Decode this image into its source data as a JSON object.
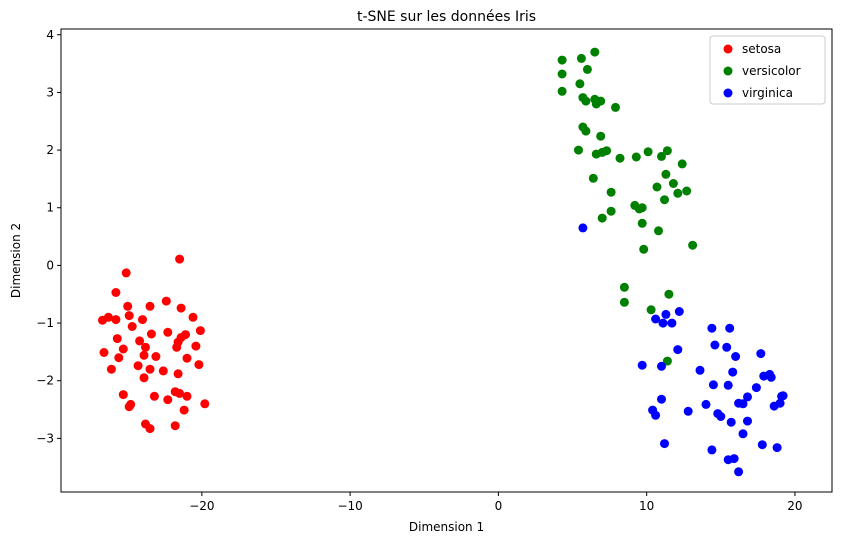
{
  "chart_data": {
    "type": "scatter",
    "title": "t-SNE sur les données Iris",
    "xlabel": "Dimension 1",
    "ylabel": "Dimension 2",
    "xlim": [
      -29.5,
      22.5
    ],
    "ylim": [
      -3.93,
      4.1
    ],
    "xticks": [
      -20,
      -10,
      0,
      10,
      20
    ],
    "xtick_labels": [
      "−20",
      "−10",
      "0",
      "10",
      "20"
    ],
    "yticks": [
      -3,
      -2,
      -1,
      0,
      1,
      2,
      3,
      4
    ],
    "ytick_labels": [
      "−3",
      "−2",
      "−1",
      "0",
      "1",
      "2",
      "3",
      "4"
    ],
    "grid": false,
    "legend_position": "top-right",
    "series": [
      {
        "name": "setosa",
        "color": "#ff0000",
        "points": [
          [
            -21.5,
            0.11
          ],
          [
            -25.1,
            -0.13
          ],
          [
            -25.8,
            -0.47
          ],
          [
            -22.4,
            -0.62
          ],
          [
            -25.0,
            -0.71
          ],
          [
            -23.5,
            -0.71
          ],
          [
            -21.4,
            -0.74
          ],
          [
            -20.6,
            -0.9
          ],
          [
            -26.7,
            -0.95
          ],
          [
            -26.3,
            -0.9
          ],
          [
            -25.8,
            -0.94
          ],
          [
            -24.9,
            -0.87
          ],
          [
            -24.0,
            -0.94
          ],
          [
            -24.7,
            -1.06
          ],
          [
            -20.1,
            -1.13
          ],
          [
            -23.4,
            -1.19
          ],
          [
            -22.3,
            -1.16
          ],
          [
            -21.4,
            -1.25
          ],
          [
            -21.1,
            -1.2
          ],
          [
            -21.6,
            -1.33
          ],
          [
            -25.7,
            -1.27
          ],
          [
            -24.2,
            -1.31
          ],
          [
            -26.6,
            -1.51
          ],
          [
            -25.3,
            -1.45
          ],
          [
            -23.8,
            -1.42
          ],
          [
            -21.7,
            -1.42
          ],
          [
            -20.4,
            -1.4
          ],
          [
            -25.6,
            -1.6
          ],
          [
            -23.9,
            -1.56
          ],
          [
            -23.1,
            -1.58
          ],
          [
            -21.0,
            -1.61
          ],
          [
            -20.2,
            -1.72
          ],
          [
            -26.1,
            -1.8
          ],
          [
            -24.3,
            -1.74
          ],
          [
            -23.5,
            -1.8
          ],
          [
            -22.6,
            -1.83
          ],
          [
            -21.6,
            -1.88
          ],
          [
            -23.9,
            -1.95
          ],
          [
            -21.8,
            -2.19
          ],
          [
            -21.0,
            -2.27
          ],
          [
            -25.3,
            -2.24
          ],
          [
            -23.2,
            -2.27
          ],
          [
            -22.3,
            -2.33
          ],
          [
            -21.5,
            -2.22
          ],
          [
            -19.8,
            -2.4
          ],
          [
            -24.9,
            -2.45
          ],
          [
            -24.8,
            -2.41
          ],
          [
            -21.2,
            -2.51
          ],
          [
            -23.8,
            -2.75
          ],
          [
            -23.5,
            -2.83
          ],
          [
            -21.8,
            -2.78
          ]
        ]
      },
      {
        "name": "versicolor",
        "color": "#008000",
        "points": [
          [
            6.5,
            3.7
          ],
          [
            4.3,
            3.56
          ],
          [
            5.6,
            3.59
          ],
          [
            6.0,
            3.4
          ],
          [
            4.3,
            3.32
          ],
          [
            5.5,
            3.15
          ],
          [
            4.3,
            3.02
          ],
          [
            5.7,
            2.91
          ],
          [
            6.5,
            2.88
          ],
          [
            5.9,
            2.85
          ],
          [
            6.9,
            2.85
          ],
          [
            6.6,
            2.8
          ],
          [
            7.9,
            2.74
          ],
          [
            5.7,
            2.4
          ],
          [
            5.9,
            2.33
          ],
          [
            6.9,
            2.24
          ],
          [
            5.4,
            2.0
          ],
          [
            7.0,
            1.96
          ],
          [
            6.6,
            1.93
          ],
          [
            7.3,
            1.99
          ],
          [
            8.2,
            1.86
          ],
          [
            9.3,
            1.88
          ],
          [
            10.1,
            1.97
          ],
          [
            11.0,
            1.89
          ],
          [
            11.4,
            1.99
          ],
          [
            12.4,
            1.76
          ],
          [
            11.3,
            1.58
          ],
          [
            6.4,
            1.51
          ],
          [
            11.8,
            1.42
          ],
          [
            10.7,
            1.36
          ],
          [
            7.6,
            1.27
          ],
          [
            12.1,
            1.25
          ],
          [
            12.7,
            1.29
          ],
          [
            11.2,
            1.14
          ],
          [
            9.2,
            1.04
          ],
          [
            9.5,
            0.98
          ],
          [
            9.7,
            1.0
          ],
          [
            7.6,
            0.94
          ],
          [
            7.0,
            0.82
          ],
          [
            9.7,
            0.73
          ],
          [
            10.8,
            0.6
          ],
          [
            9.8,
            0.28
          ],
          [
            13.1,
            0.35
          ],
          [
            8.5,
            -0.38
          ],
          [
            8.5,
            -0.64
          ],
          [
            11.5,
            -0.5
          ],
          [
            10.3,
            -0.77
          ],
          [
            11.4,
            -1.66
          ]
        ]
      },
      {
        "name": "virginica",
        "color": "#0000ff",
        "points": [
          [
            5.7,
            0.65
          ],
          [
            10.6,
            -0.93
          ],
          [
            11.1,
            -1.0
          ],
          [
            11.7,
            -1.0
          ],
          [
            11.3,
            -0.85
          ],
          [
            12.2,
            -0.8
          ],
          [
            14.4,
            -1.09
          ],
          [
            15.6,
            -1.09
          ],
          [
            14.6,
            -1.38
          ],
          [
            15.4,
            -1.42
          ],
          [
            12.1,
            -1.46
          ],
          [
            16.0,
            -1.58
          ],
          [
            17.7,
            -1.53
          ],
          [
            9.7,
            -1.73
          ],
          [
            11.0,
            -1.75
          ],
          [
            13.6,
            -1.82
          ],
          [
            15.8,
            -1.85
          ],
          [
            17.9,
            -1.92
          ],
          [
            18.3,
            -1.89
          ],
          [
            18.4,
            -1.94
          ],
          [
            14.5,
            -2.07
          ],
          [
            15.5,
            -2.08
          ],
          [
            17.4,
            -2.12
          ],
          [
            16.8,
            -2.28
          ],
          [
            19.1,
            -2.27
          ],
          [
            19.2,
            -2.26
          ],
          [
            10.4,
            -2.51
          ],
          [
            10.6,
            -2.6
          ],
          [
            11.0,
            -2.32
          ],
          [
            14.0,
            -2.41
          ],
          [
            16.2,
            -2.39
          ],
          [
            16.5,
            -2.4
          ],
          [
            18.6,
            -2.44
          ],
          [
            19.0,
            -2.39
          ],
          [
            12.8,
            -2.53
          ],
          [
            14.8,
            -2.57
          ],
          [
            15.0,
            -2.62
          ],
          [
            15.7,
            -2.72
          ],
          [
            16.8,
            -2.7
          ],
          [
            16.5,
            -2.92
          ],
          [
            11.2,
            -3.09
          ],
          [
            17.8,
            -3.11
          ],
          [
            18.8,
            -3.16
          ],
          [
            14.4,
            -3.2
          ],
          [
            15.5,
            -3.37
          ],
          [
            15.9,
            -3.35
          ],
          [
            16.2,
            -3.58
          ]
        ]
      }
    ]
  }
}
